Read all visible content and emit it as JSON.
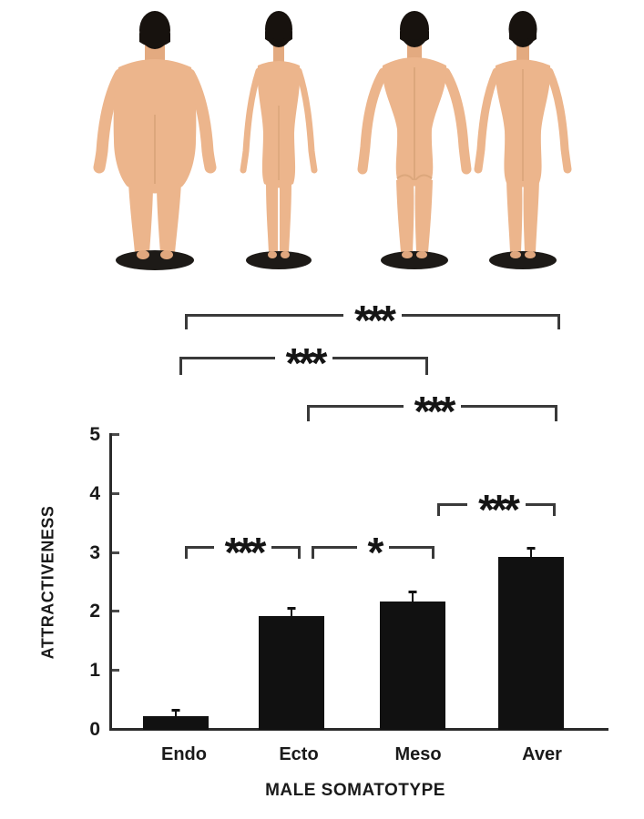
{
  "figures": {
    "items": [
      {
        "icon": "endomorph-male-body-rear-figure"
      },
      {
        "icon": "ectomorph-male-body-rear-figure"
      },
      {
        "icon": "mesomorph-male-body-rear-figure"
      },
      {
        "icon": "average-male-body-rear-figure"
      }
    ],
    "skin_color": "#ecb58c",
    "hair_color": "#17120e",
    "base_color": "#1d1a17"
  },
  "chart_data": {
    "type": "bar",
    "title": "",
    "categories": [
      "Endo",
      "Ecto",
      "Meso",
      "Aver"
    ],
    "values": [
      0.2,
      1.9,
      2.15,
      2.9
    ],
    "errors": [
      0.13,
      0.15,
      0.18,
      0.17
    ],
    "xlabel": "MALE SOMATOTYPE",
    "ylabel": "ATTRACTIVENESS",
    "ylim": [
      0,
      5
    ],
    "yticks": [
      "0",
      "1",
      "2",
      "3",
      "4",
      "5"
    ],
    "grid": "off",
    "legend": "none",
    "bar_color": "#111111",
    "significance_brackets": [
      {
        "between": [
          "Endo",
          "Aver"
        ],
        "label": "***"
      },
      {
        "between": [
          "Endo",
          "Meso"
        ],
        "label": "***"
      },
      {
        "between": [
          "Ecto",
          "Aver"
        ],
        "label": "***"
      },
      {
        "between": [
          "Meso",
          "Aver"
        ],
        "label": "***"
      },
      {
        "between": [
          "Endo",
          "Ecto"
        ],
        "label": "***"
      },
      {
        "between": [
          "Ecto",
          "Meso"
        ],
        "label": "*"
      }
    ]
  }
}
